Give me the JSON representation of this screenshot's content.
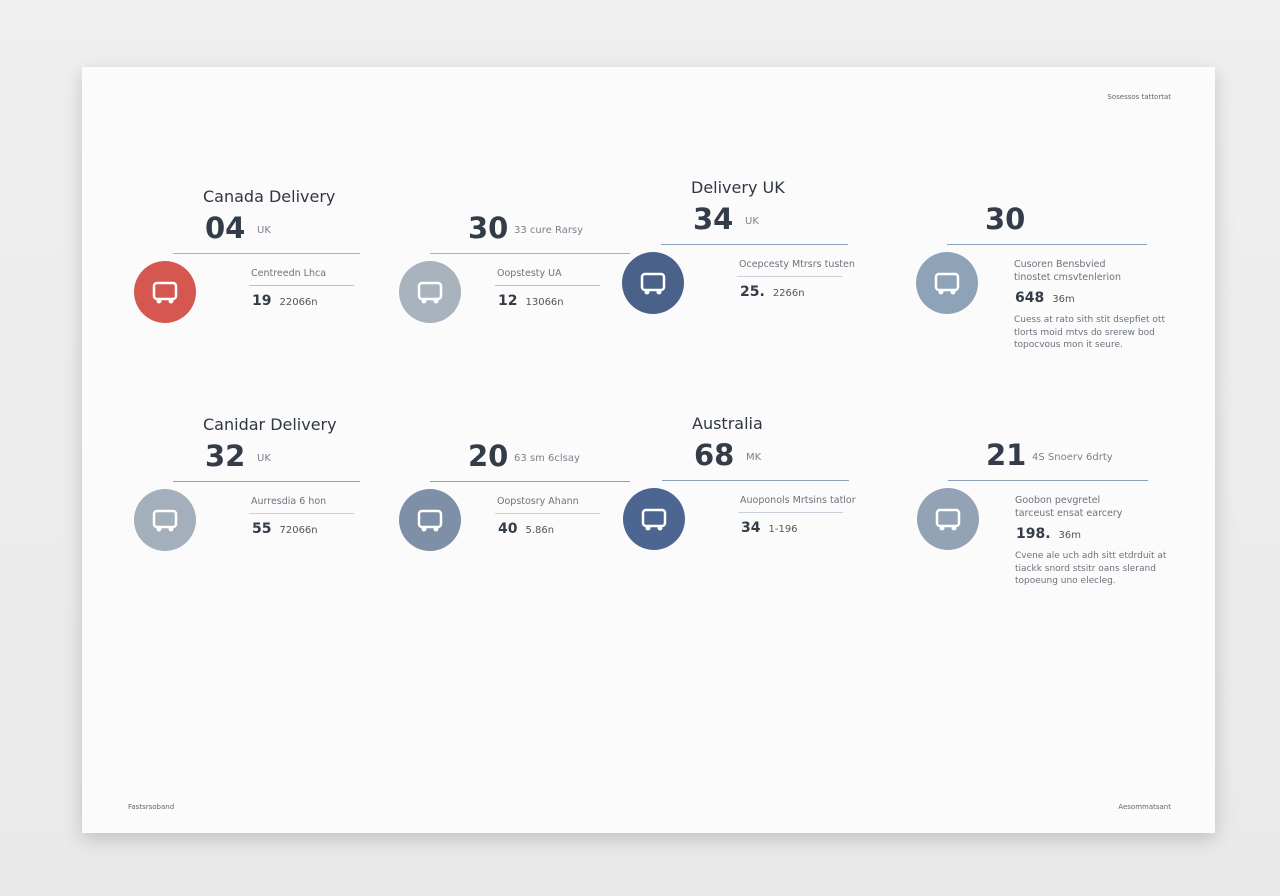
{
  "header": {
    "note": "Sosessos tattortat"
  },
  "panels": [
    {
      "title": "Canada Delivery",
      "stats": [
        {
          "value": "04",
          "unit": "UK",
          "label": "Centreedn Lhca",
          "detail_value": "19",
          "detail_unit": "22066n"
        },
        {
          "value": "30",
          "unit": "33 cure Rarsy",
          "label": "Oopstesty UA",
          "detail_value": "12",
          "detail_unit": "13066n"
        }
      ]
    },
    {
      "title": "Delivery UK",
      "stats": [
        {
          "value": "34",
          "unit": "UK",
          "label": "Ocepcesty Mtrsrs tusten",
          "detail_value": "25.",
          "detail_unit": "2266n"
        },
        {
          "value": "30",
          "unit": "",
          "label": "Cusoren Bensbvied tinostet cmsvtenlerion",
          "detail_value": "648",
          "detail_unit": "36m",
          "description": "Cuess at rato sith stit dsepfiet ott tlorts moid mtvs do srerew bod topocvous mon it seure."
        }
      ]
    },
    {
      "title": "Canidar Delivery",
      "stats": [
        {
          "value": "32",
          "unit": "UK",
          "label": "Aurresdia 6 hon",
          "detail_value": "55",
          "detail_unit": "72066n"
        },
        {
          "value": "20",
          "unit": "63 sm 6clsay",
          "label": "Oopstosry Ahann",
          "detail_value": "40",
          "detail_unit": "5.86n"
        }
      ]
    },
    {
      "title": "Australia",
      "stats": [
        {
          "value": "68",
          "unit": "MK",
          "label": "Auoponols Mrtsins tatlor",
          "detail_value": "34",
          "detail_unit": "1-196"
        },
        {
          "value": "21",
          "unit": "4S Snoerv 6drty",
          "label": "Goobon pevgretel tarceust ensat earcery",
          "detail_value": "198.",
          "detail_unit": "36m",
          "description": "Cvene ale uch adh sitt etdrduit at tiackk snord stsitr oans slerand topoeung uno elecleg."
        }
      ]
    }
  ],
  "footer": {
    "left": "Fastsrsoband",
    "right": "Aesommatsant"
  }
}
